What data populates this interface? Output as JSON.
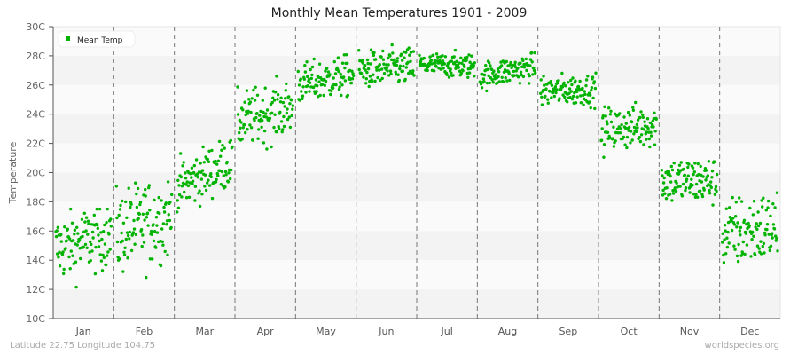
{
  "title": "Monthly Mean Temperatures 1901 - 2009",
  "footer": {
    "left": "Latitude 22.75 Longitude 104.75",
    "right": "worldspecies.org"
  },
  "colors": {
    "series": "#00b300",
    "band_light": "#fafafa",
    "band_dark": "#f3f3f3",
    "axis": "#555555",
    "separator": "#777777"
  },
  "chart_data": {
    "type": "scatter",
    "title": "Monthly Mean Temperatures 1901 - 2009",
    "xlabel": "",
    "ylabel": "Temperature",
    "ylim": [
      10,
      30
    ],
    "yticks": [
      "10C",
      "12C",
      "14C",
      "16C",
      "18C",
      "20C",
      "22C",
      "24C",
      "26C",
      "28C",
      "30C"
    ],
    "categories": [
      "Jan",
      "Feb",
      "Mar",
      "Apr",
      "May",
      "Jun",
      "Jul",
      "Aug",
      "Sep",
      "Oct",
      "Nov",
      "Dec"
    ],
    "legend": {
      "entries": [
        "Mean Temp"
      ],
      "position": "top-left"
    },
    "grid": "alternating horizontal bands, dashed vertical month separators",
    "series": [
      {
        "name": "Mean Temp",
        "points_per_month": 109,
        "month_stats": [
          {
            "month": "Jan",
            "mean": 14.8,
            "min": 11.2,
            "max": 17.5,
            "start": 14.8,
            "end": 15.8
          },
          {
            "month": "Feb",
            "mean": 16.2,
            "min": 11.6,
            "max": 19.6,
            "start": 15.9,
            "end": 17.0
          },
          {
            "month": "Mar",
            "mean": 20.2,
            "min": 17.3,
            "max": 22.2,
            "start": 19.0,
            "end": 20.8
          },
          {
            "month": "Apr",
            "mean": 23.6,
            "min": 21.3,
            "max": 26.6,
            "start": 23.5,
            "end": 24.5
          },
          {
            "month": "May",
            "mean": 26.3,
            "min": 24.8,
            "max": 28.6,
            "start": 26.0,
            "end": 26.7
          },
          {
            "month": "Jun",
            "mean": 27.1,
            "min": 25.3,
            "max": 28.8,
            "start": 27.0,
            "end": 27.3
          },
          {
            "month": "Jul",
            "mean": 27.4,
            "min": 26.3,
            "max": 28.6,
            "start": 27.4,
            "end": 27.3
          },
          {
            "month": "Aug",
            "mean": 26.8,
            "min": 25.6,
            "max": 28.2,
            "start": 26.6,
            "end": 27.3
          },
          {
            "month": "Sep",
            "mean": 25.6,
            "min": 24.0,
            "max": 26.9,
            "start": 25.6,
            "end": 25.7
          },
          {
            "month": "Oct",
            "mean": 22.8,
            "min": 20.7,
            "max": 24.8,
            "start": 22.9,
            "end": 23.3
          },
          {
            "month": "Nov",
            "mean": 19.3,
            "min": 17.3,
            "max": 21.8,
            "start": 19.5,
            "end": 19.4
          },
          {
            "month": "Dec",
            "mean": 16.2,
            "min": 12.0,
            "max": 18.8,
            "start": 15.8,
            "end": 16.3
          }
        ]
      }
    ]
  }
}
